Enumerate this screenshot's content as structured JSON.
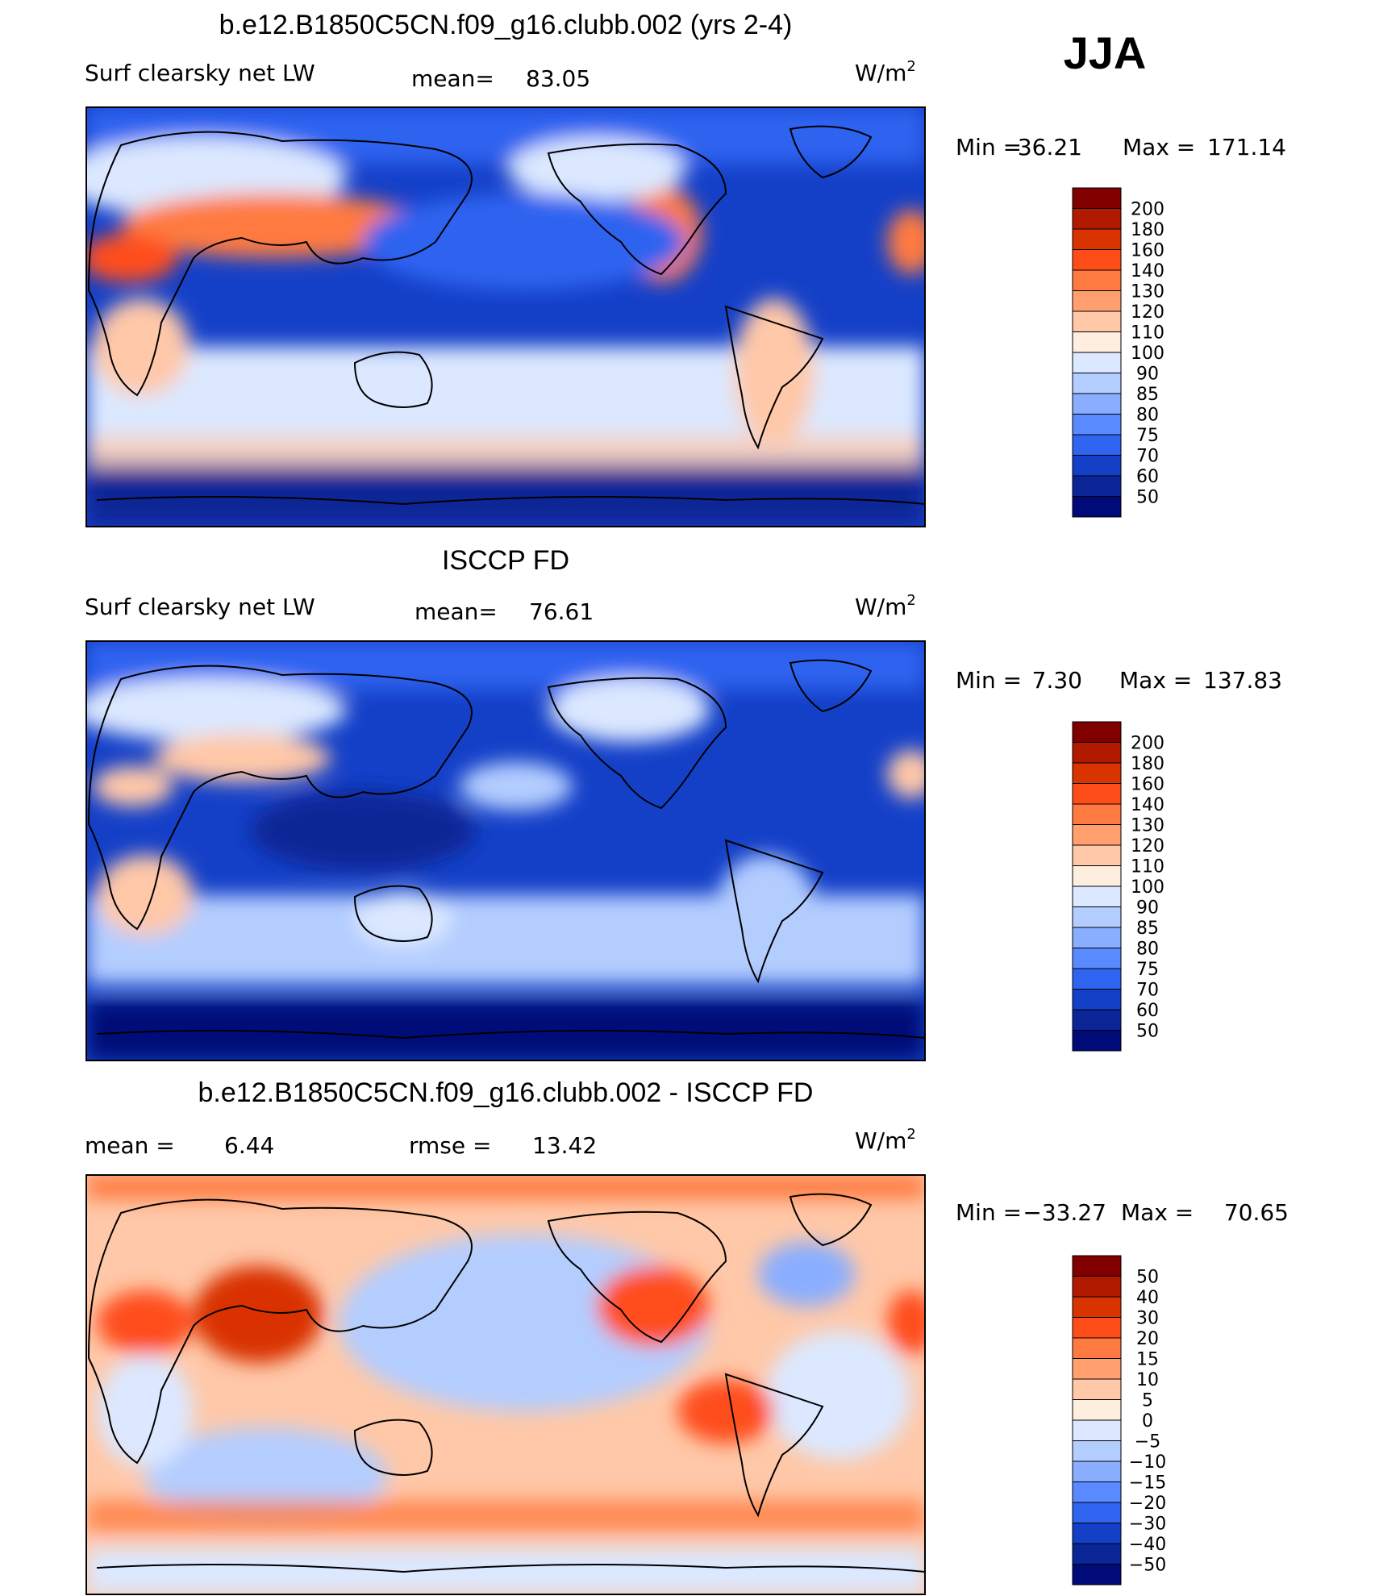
{
  "season": "JJA",
  "units_base": "W/m",
  "units_exp": "2",
  "panels": [
    {
      "id": "model",
      "title": "b.e12.B1850C5CN.f09_g16.clubb.002 (yrs 2-4)",
      "left_label": "Surf clearsky net LW",
      "stat1_label": "mean=",
      "stat1_value": "83.05",
      "stat2_label": "",
      "stat2_value": "",
      "min_label": "Min =",
      "min_value": "36.21",
      "max_label": "Max =",
      "max_value": "171.14",
      "colorbar_labels": [
        "200",
        "180",
        "160",
        "140",
        "130",
        "120",
        "110",
        "100",
        "90",
        "85",
        "80",
        "75",
        "70",
        "60",
        "50"
      ]
    },
    {
      "id": "obs",
      "title": "ISCCP FD",
      "left_label": "Surf clearsky net LW",
      "stat1_label": "mean=",
      "stat1_value": "76.61",
      "stat2_label": "",
      "stat2_value": "",
      "min_label": "Min =",
      "min_value": "7.30",
      "max_label": "Max =",
      "max_value": "137.83",
      "colorbar_labels": [
        "200",
        "180",
        "160",
        "140",
        "130",
        "120",
        "110",
        "100",
        "90",
        "85",
        "80",
        "75",
        "70",
        "60",
        "50"
      ]
    },
    {
      "id": "diff",
      "title": "b.e12.B1850C5CN.f09_g16.clubb.002 - ISCCP FD",
      "left_label": "",
      "stat1_label": "mean =",
      "stat1_value": "6.44",
      "stat2_label": "rmse =",
      "stat2_value": "13.42",
      "min_label": "Min =",
      "min_value": "−33.27",
      "max_label": "Max =",
      "max_value": "70.65",
      "colorbar_labels": [
        "50",
        "40",
        "30",
        "20",
        "15",
        "10",
        "5",
        "0",
        "−5",
        "−10",
        "−15",
        "−20",
        "−30",
        "−40",
        "−50"
      ]
    }
  ],
  "colors": {
    "colorbar": [
      "#800000",
      "#b21a00",
      "#d93300",
      "#ff4d1a",
      "#ff7a40",
      "#ffa06e",
      "#ffc8a8",
      "#fdeee0",
      "#dbe8ff",
      "#b4cdff",
      "#8aaeff",
      "#5a8aff",
      "#2f64f0",
      "#1440c8",
      "#0a2696",
      "#000a78"
    ],
    "model_map": {
      "ocean_low": "#1440c8",
      "ocean_mid": "#2f64f0",
      "band": "#dbe8ff",
      "land_warm": "#ff7a40",
      "polar": "#000a78"
    },
    "diff_map": {
      "base": "#ffc8a8",
      "cool": "#b4cdff",
      "hot": "#d93300"
    }
  }
}
